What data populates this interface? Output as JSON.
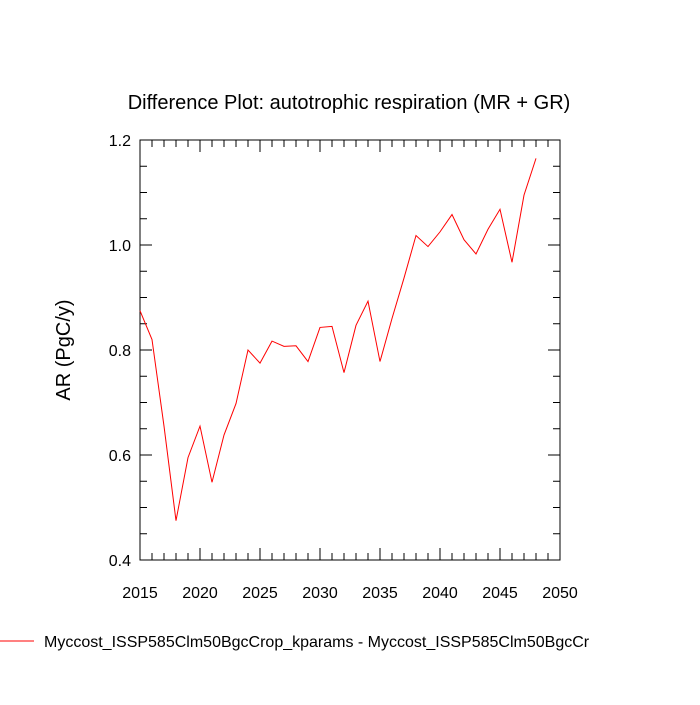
{
  "chart_data": {
    "type": "line",
    "title": "Difference Plot: autotrophic respiration (MR + GR)",
    "xlabel": "",
    "ylabel": "AR  (PgC/y)",
    "xlim": [
      2015,
      2050
    ],
    "ylim": [
      0.4,
      1.2
    ],
    "xticks": [
      2015,
      2020,
      2025,
      2030,
      2035,
      2040,
      2045,
      2050
    ],
    "xtick_labels": [
      "2015",
      "2020",
      "2025",
      "2030",
      "2035",
      "2040",
      "2045",
      "2050"
    ],
    "yticks": [
      0.4,
      0.6,
      0.8,
      1.0,
      1.2
    ],
    "ytick_labels": [
      "0.4",
      "0.6",
      "0.8",
      "1.0",
      "1.2"
    ],
    "x_minor_step": 1,
    "y_minor_step": 0.05,
    "grid": false,
    "legend_position": "bottom-left",
    "series": [
      {
        "name": "Myccost_ISSP585Clm50BgcCrop_kparams - Myccost_ISSP585Clm50BgcCr",
        "color": "#ff0000",
        "x": [
          2015,
          2016,
          2017,
          2018,
          2019,
          2020,
          2021,
          2022,
          2023,
          2024,
          2025,
          2026,
          2027,
          2028,
          2029,
          2030,
          2031,
          2032,
          2033,
          2034,
          2035,
          2036,
          2037,
          2038,
          2039,
          2040,
          2041,
          2042,
          2043,
          2044,
          2045,
          2046,
          2047,
          2048
        ],
        "values": [
          0.875,
          0.82,
          0.655,
          0.475,
          0.595,
          0.655,
          0.548,
          0.638,
          0.698,
          0.8,
          0.775,
          0.817,
          0.807,
          0.808,
          0.778,
          0.843,
          0.845,
          0.757,
          0.847,
          0.893,
          0.778,
          0.86,
          0.937,
          1.018,
          0.997,
          1.025,
          1.058,
          1.01,
          0.983,
          1.03,
          1.068,
          0.967,
          1.095,
          1.165
        ]
      }
    ]
  }
}
